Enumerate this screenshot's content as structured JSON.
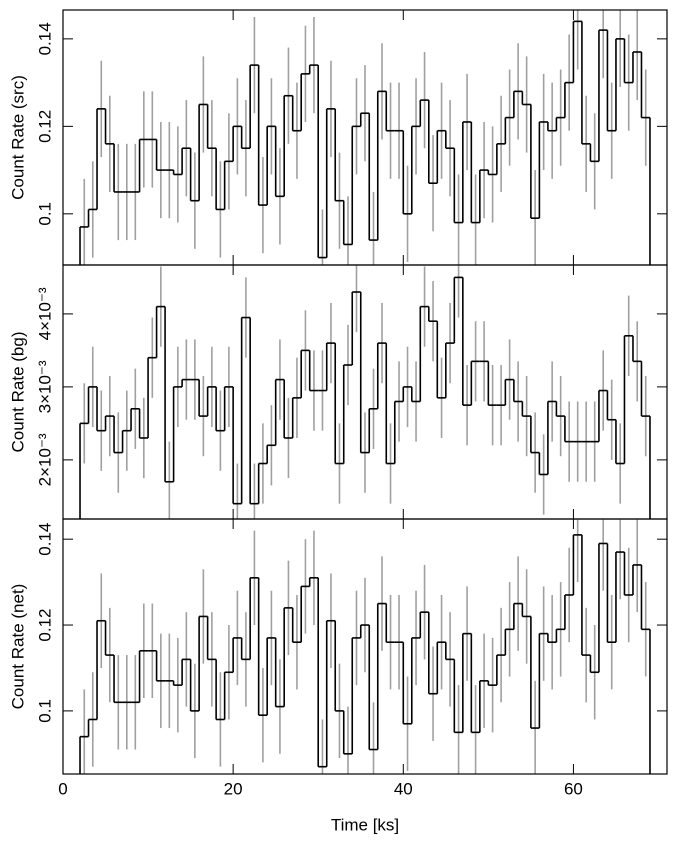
{
  "chart_data": [
    {
      "type": "histogram",
      "ylabel": "Count Rate (src)",
      "bins": [
        2,
        3,
        4,
        5,
        6,
        7,
        8,
        9,
        10,
        11,
        12,
        13,
        14,
        15,
        16,
        17,
        18,
        19,
        20,
        21,
        22,
        23,
        24,
        25,
        26,
        27,
        28,
        29,
        30,
        31,
        32,
        33,
        34,
        35,
        36,
        37,
        38,
        39,
        40,
        41,
        42,
        43,
        44,
        45,
        46,
        47,
        48,
        49,
        50,
        51,
        52,
        53,
        54,
        55,
        56,
        57,
        58,
        59,
        60,
        61,
        62,
        63,
        64,
        65,
        66,
        67,
        68,
        69
      ],
      "values": [
        0.097,
        0.101,
        0.124,
        0.116,
        0.105,
        0.105,
        0.105,
        0.117,
        0.117,
        0.11,
        0.11,
        0.109,
        0.115,
        0.103,
        0.125,
        0.115,
        0.101,
        0.112,
        0.12,
        0.115,
        0.134,
        0.102,
        0.12,
        0.104,
        0.127,
        0.119,
        0.132,
        0.134,
        0.09,
        0.124,
        0.103,
        0.093,
        0.12,
        0.123,
        0.094,
        0.128,
        0.119,
        0.119,
        0.1,
        0.12,
        0.126,
        0.107,
        0.119,
        0.115,
        0.098,
        0.121,
        0.098,
        0.11,
        0.109,
        0.116,
        0.122,
        0.128,
        0.125,
        0.099,
        0.121,
        0.119,
        0.122,
        0.13,
        0.144,
        0.116,
        0.112,
        0.142,
        0.119,
        0.14,
        0.13,
        0.137,
        0.122
      ],
      "error": 0.011,
      "color": "#000000",
      "error_color": "#a0a0a0",
      "xlim": [
        0,
        71
      ],
      "xticks": [
        0,
        20,
        40,
        60
      ],
      "ylim": [
        0.0883,
        0.1466
      ],
      "yticks": [
        0.1,
        0.12,
        0.14
      ]
    },
    {
      "type": "histogram",
      "ylabel": "Count Rate (bg)",
      "bins": [
        2,
        3,
        4,
        5,
        6,
        7,
        8,
        9,
        10,
        11,
        12,
        13,
        14,
        15,
        16,
        17,
        18,
        19,
        20,
        21,
        22,
        23,
        24,
        25,
        26,
        27,
        28,
        29,
        30,
        31,
        32,
        33,
        34,
        35,
        36,
        37,
        38,
        39,
        40,
        41,
        42,
        43,
        44,
        45,
        46,
        47,
        48,
        49,
        50,
        51,
        52,
        53,
        54,
        55,
        56,
        57,
        58,
        59,
        60,
        61,
        62,
        63,
        64,
        65,
        66,
        67,
        68,
        69
      ],
      "values": [
        0.0025,
        0.003,
        0.0024,
        0.0026,
        0.0021,
        0.0024,
        0.0027,
        0.0023,
        0.0034,
        0.0041,
        0.0017,
        0.003,
        0.0031,
        0.0031,
        0.0026,
        0.003,
        0.0024,
        0.003,
        0.0014,
        0.00395,
        0.0014,
        0.00195,
        0.0022,
        0.0031,
        0.0023,
        0.00285,
        0.0035,
        0.00295,
        0.00295,
        0.0036,
        0.00195,
        0.0033,
        0.0043,
        0.0021,
        0.0027,
        0.0036,
        0.00195,
        0.0028,
        0.003,
        0.0028,
        0.0041,
        0.0039,
        0.00285,
        0.0036,
        0.0045,
        0.00275,
        0.00335,
        0.00335,
        0.00275,
        0.00275,
        0.0031,
        0.0028,
        0.0026,
        0.0021,
        0.0018,
        0.0028,
        0.0026,
        0.00225,
        0.00225,
        0.00225,
        0.00225,
        0.00295,
        0.00255,
        0.00195,
        0.0037,
        0.00335,
        0.0026
      ],
      "error": 0.00055,
      "color": "#000000",
      "error_color": "#a0a0a0",
      "xlim": [
        0,
        71
      ],
      "xticks": [
        0,
        20,
        40,
        60
      ],
      "ylim": [
        0.00119,
        0.00467
      ],
      "yticks": [
        {
          "value": 0.002,
          "label": "2×10⁻³"
        },
        {
          "value": 0.003,
          "label": "3×10⁻³"
        },
        {
          "value": 0.004,
          "label": "4×10⁻³"
        }
      ]
    },
    {
      "type": "histogram",
      "ylabel": "Count Rate (net)",
      "xlabel": "Time [ks]",
      "bins": [
        2,
        3,
        4,
        5,
        6,
        7,
        8,
        9,
        10,
        11,
        12,
        13,
        14,
        15,
        16,
        17,
        18,
        19,
        20,
        21,
        22,
        23,
        24,
        25,
        26,
        27,
        28,
        29,
        30,
        31,
        32,
        33,
        34,
        35,
        36,
        37,
        38,
        39,
        40,
        41,
        42,
        43,
        44,
        45,
        46,
        47,
        48,
        49,
        50,
        51,
        52,
        53,
        54,
        55,
        56,
        57,
        58,
        59,
        60,
        61,
        62,
        63,
        64,
        65,
        66,
        67,
        68,
        69
      ],
      "values": [
        0.094,
        0.098,
        0.121,
        0.113,
        0.102,
        0.102,
        0.102,
        0.114,
        0.114,
        0.107,
        0.107,
        0.106,
        0.112,
        0.1,
        0.122,
        0.112,
        0.098,
        0.109,
        0.117,
        0.112,
        0.131,
        0.099,
        0.117,
        0.101,
        0.124,
        0.116,
        0.129,
        0.131,
        0.087,
        0.121,
        0.1,
        0.09,
        0.117,
        0.12,
        0.091,
        0.125,
        0.116,
        0.116,
        0.097,
        0.117,
        0.123,
        0.104,
        0.116,
        0.112,
        0.095,
        0.118,
        0.095,
        0.107,
        0.106,
        0.113,
        0.119,
        0.125,
        0.122,
        0.096,
        0.118,
        0.116,
        0.119,
        0.127,
        0.141,
        0.113,
        0.109,
        0.139,
        0.116,
        0.137,
        0.127,
        0.134,
        0.119
      ],
      "error": 0.011,
      "color": "#000000",
      "error_color": "#a0a0a0",
      "xlim": [
        0,
        71
      ],
      "xticks": [
        0,
        20,
        40,
        60
      ],
      "ylim": [
        0.0853,
        0.1447
      ],
      "yticks": [
        0.1,
        0.12,
        0.14
      ]
    }
  ]
}
